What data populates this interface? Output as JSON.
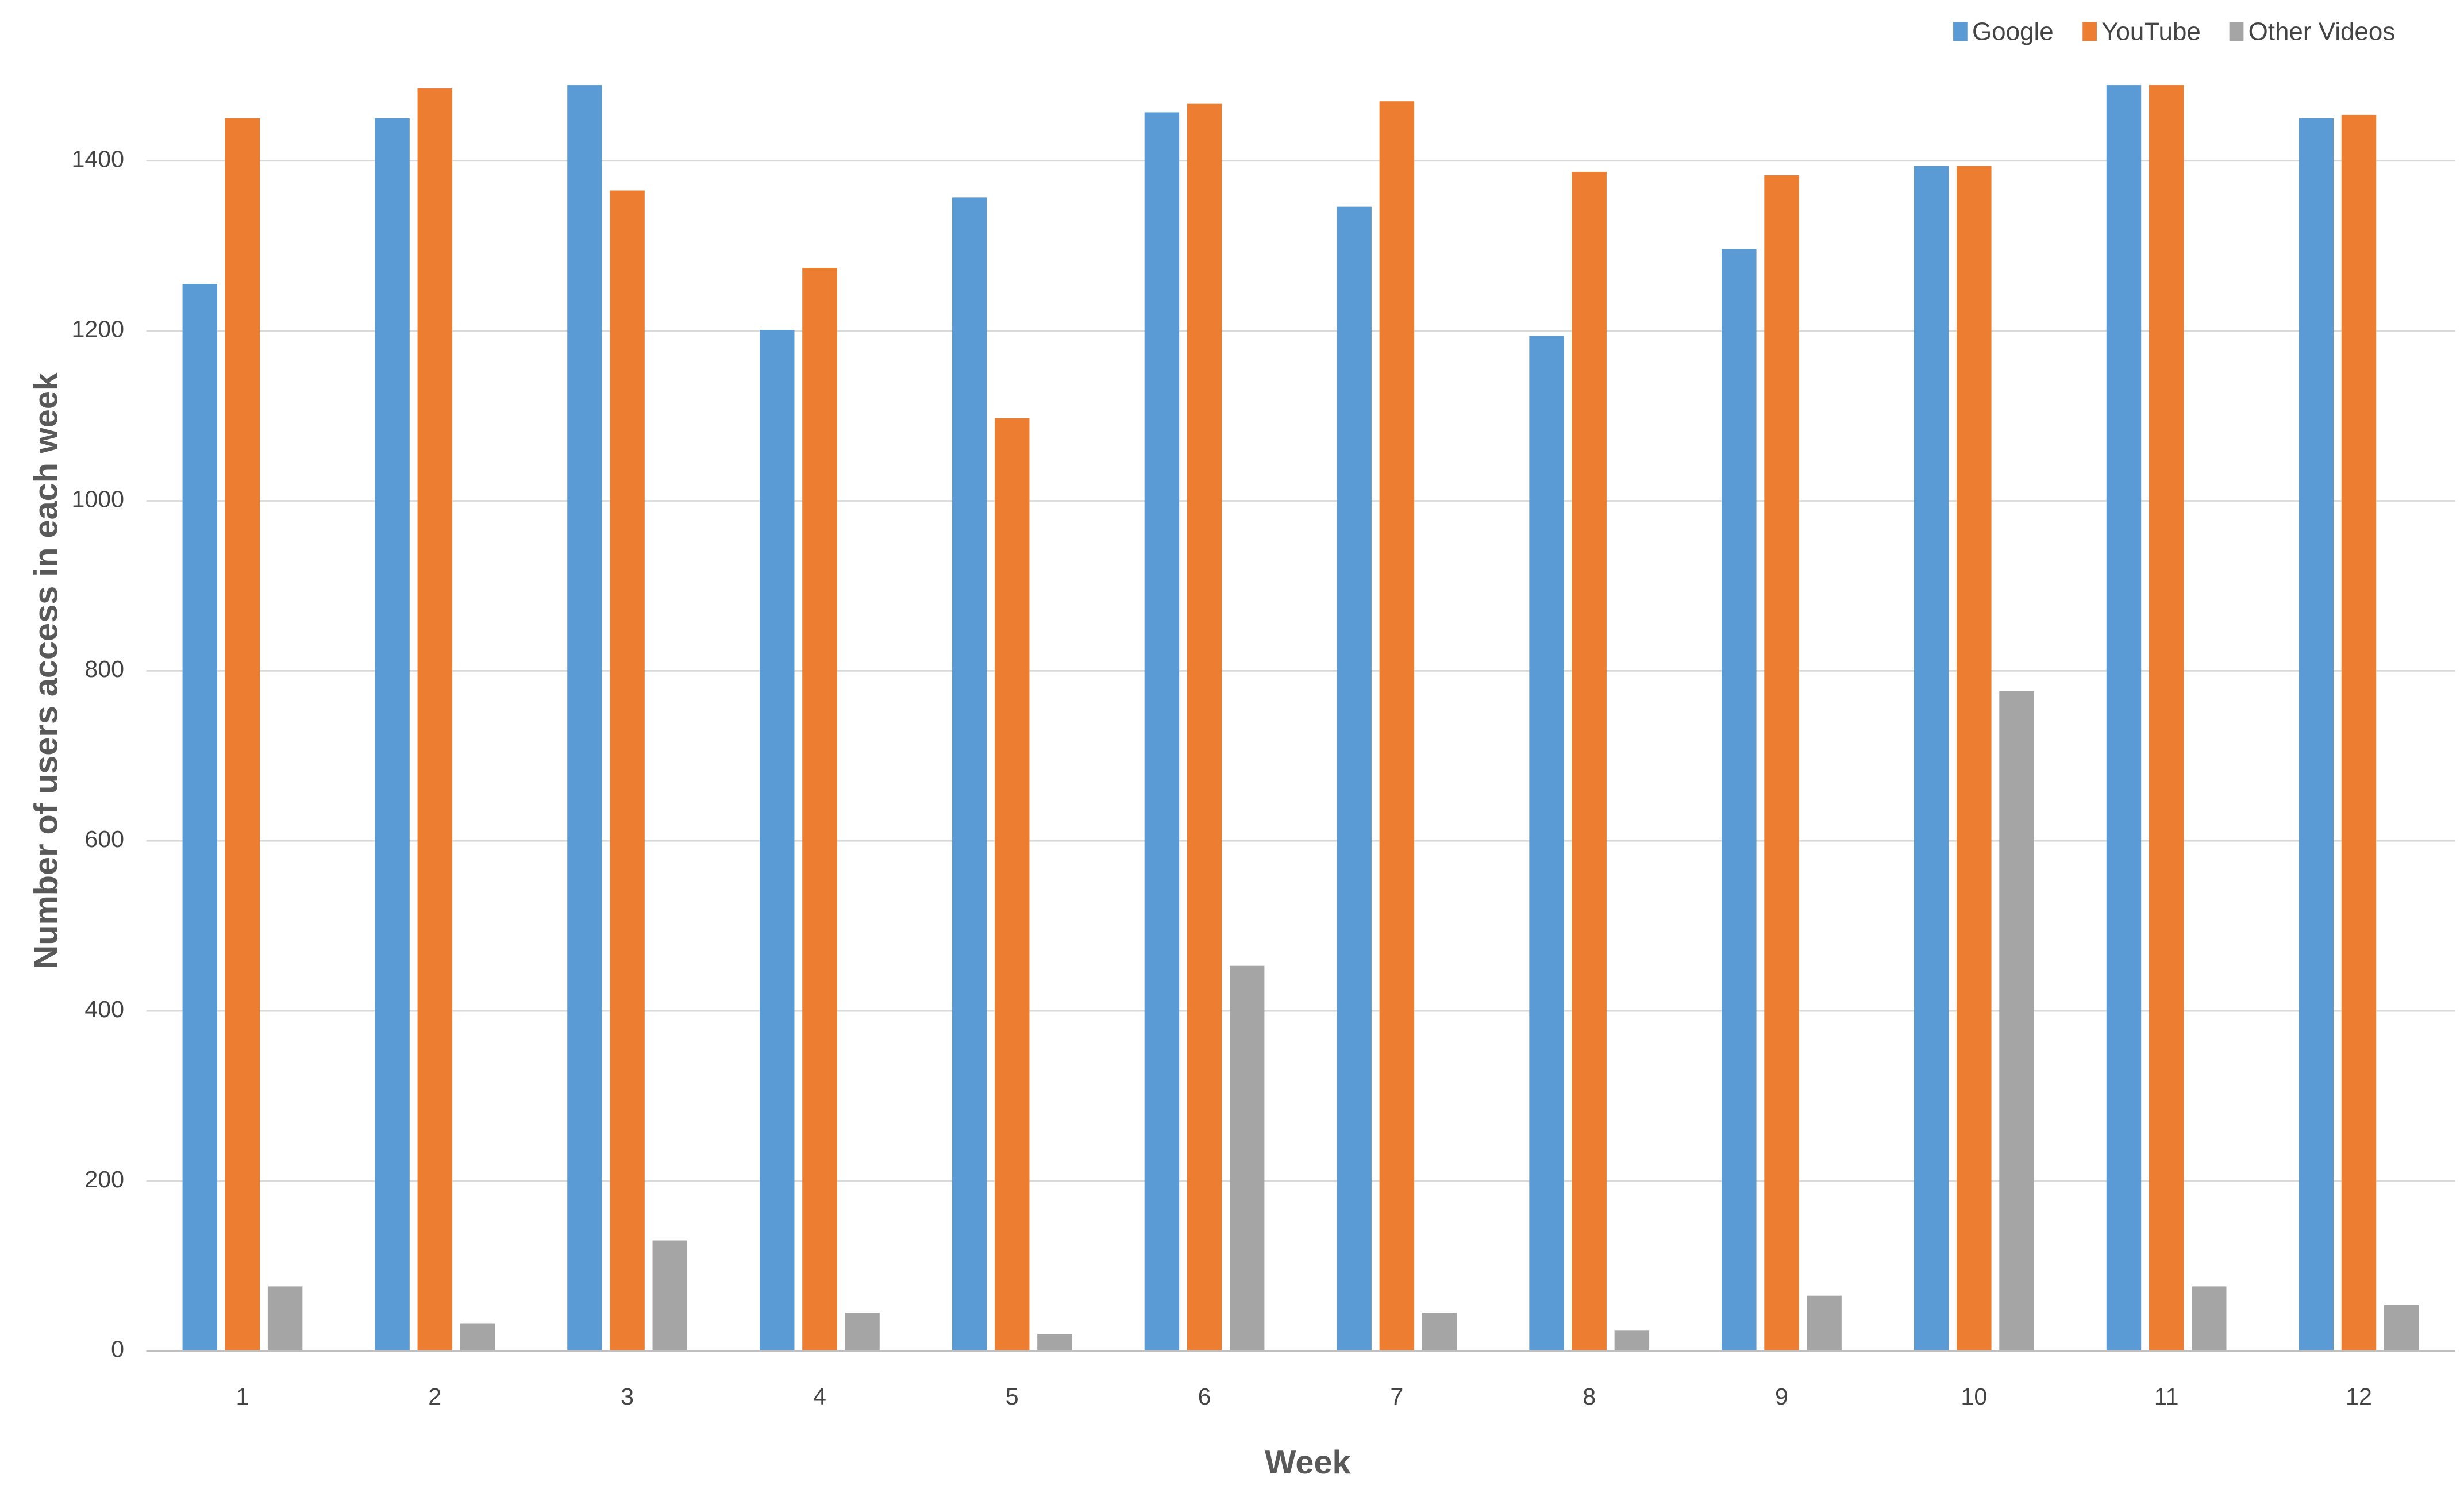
{
  "chart_data": {
    "type": "bar",
    "x_label": "Week",
    "y_label": "Number of users access in each week",
    "categories": [
      "1",
      "2",
      "3",
      "4",
      "5",
      "6",
      "7",
      "8",
      "9",
      "10",
      "11",
      "12"
    ],
    "series": [
      {
        "name": "Google",
        "color": "#5b9bd5",
        "values": [
          1255,
          1450,
          1489,
          1201,
          1357,
          1457,
          1346,
          1194,
          1296,
          1394,
          1489,
          1450
        ]
      },
      {
        "name": "YouTube",
        "color": "#ed7d31",
        "values": [
          1450,
          1485,
          1365,
          1274,
          1097,
          1467,
          1470,
          1387,
          1383,
          1394,
          1489,
          1454
        ]
      },
      {
        "name": "Other Videos",
        "color": "#a5a5a5",
        "values": [
          76,
          32,
          130,
          45,
          20,
          453,
          45,
          24,
          65,
          776,
          76,
          54
        ]
      }
    ],
    "ylim": [
      0,
      1500
    ],
    "yticks": [
      0,
      200,
      400,
      600,
      800,
      1000,
      1200,
      1400
    ],
    "grid": true,
    "legend": "top-right"
  }
}
